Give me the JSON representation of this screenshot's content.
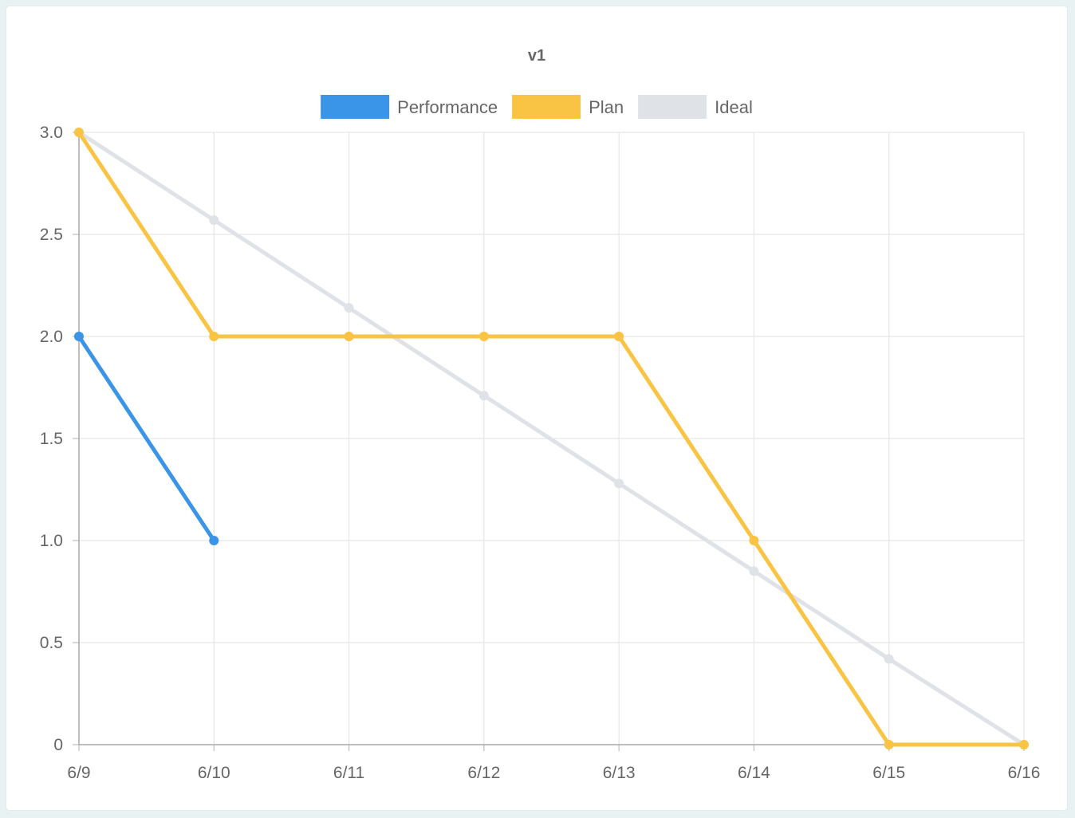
{
  "chart_data": {
    "type": "line",
    "title": "v1",
    "categories": [
      "6/9",
      "6/10",
      "6/11",
      "6/12",
      "6/13",
      "6/14",
      "6/15",
      "6/16"
    ],
    "y_ticks": [
      "0",
      "0.5",
      "1.0",
      "1.5",
      "2.0",
      "2.5",
      "3.0"
    ],
    "ylim": [
      0,
      3
    ],
    "grid": true,
    "legend_position": "top",
    "series": [
      {
        "name": "Performance",
        "color": "#3a95e8",
        "values": [
          2,
          1,
          null,
          null,
          null,
          null,
          null,
          null
        ]
      },
      {
        "name": "Plan",
        "color": "#f9c443",
        "values": [
          3,
          2,
          2,
          2,
          2,
          1,
          0,
          0
        ]
      },
      {
        "name": "Ideal",
        "color": "#dfe2e6",
        "values": [
          3,
          2.57,
          2.14,
          1.71,
          1.28,
          0.85,
          0.42,
          0
        ]
      }
    ]
  }
}
